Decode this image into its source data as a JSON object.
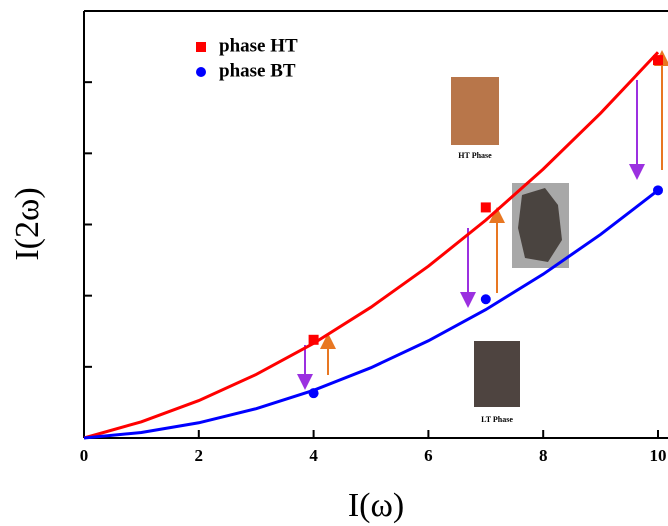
{
  "chart_data": {
    "type": "scatter",
    "x_label": "I(ω)",
    "y_label": "I(2ω)",
    "xlim": [
      0,
      10
    ],
    "xticks": [
      0,
      2,
      4,
      6,
      8,
      10
    ],
    "ylim": [
      0,
      6
    ],
    "yticks": [
      0,
      1,
      2,
      3,
      4,
      5,
      6
    ],
    "x": [
      4,
      7,
      10
    ],
    "series": [
      {
        "name": "phase HT",
        "color": "#ff0000",
        "marker": "square",
        "values": [
          1.38,
          3.24,
          5.31
        ]
      },
      {
        "name": "phase BT",
        "color": "#0000ff",
        "marker": "circle",
        "values": [
          0.63,
          1.95,
          3.48
        ]
      }
    ],
    "fit_x": [
      0,
      1,
      2,
      3,
      4,
      5,
      6,
      7,
      8,
      9,
      10
    ],
    "fits": [
      {
        "color": "#ff0000",
        "values": [
          0,
          0.228,
          0.526,
          0.893,
          1.33,
          1.838,
          2.414,
          3.061,
          3.778,
          4.564,
          5.42
        ]
      },
      {
        "color": "#0000ff",
        "values": [
          0,
          0.077,
          0.214,
          0.412,
          0.67,
          0.988,
          1.366,
          1.804,
          2.302,
          2.86,
          3.48
        ]
      }
    ],
    "annotations": [
      "HT Phase",
      "LT Phase"
    ]
  }
}
